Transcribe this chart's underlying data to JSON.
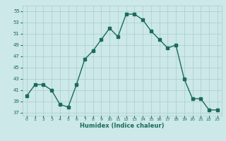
{
  "x": [
    0,
    1,
    2,
    3,
    4,
    5,
    6,
    7,
    8,
    9,
    10,
    11,
    12,
    13,
    14,
    15,
    16,
    17,
    18,
    19,
    20,
    21,
    22,
    23
  ],
  "y": [
    40,
    42,
    42,
    41,
    38.5,
    38,
    42,
    46.5,
    48,
    50,
    52,
    50.5,
    54.5,
    54.5,
    53.5,
    51.5,
    50,
    48.5,
    49,
    43,
    39.5,
    39.5,
    37.5,
    37.5
  ],
  "xlabel": "Humidex (Indice chaleur)",
  "xlim": [
    -0.5,
    23.5
  ],
  "ylim": [
    36.5,
    56
  ],
  "yticks": [
    37,
    39,
    41,
    43,
    45,
    47,
    49,
    51,
    53,
    55
  ],
  "xticks": [
    0,
    1,
    2,
    3,
    4,
    5,
    6,
    7,
    8,
    9,
    10,
    11,
    12,
    13,
    14,
    15,
    16,
    17,
    18,
    19,
    20,
    21,
    22,
    23
  ],
  "line_color": "#1a6b5a",
  "bg_color": "#cce8e8",
  "grid_color": "#aacccc",
  "marker_size": 2.5,
  "line_width": 1.0
}
